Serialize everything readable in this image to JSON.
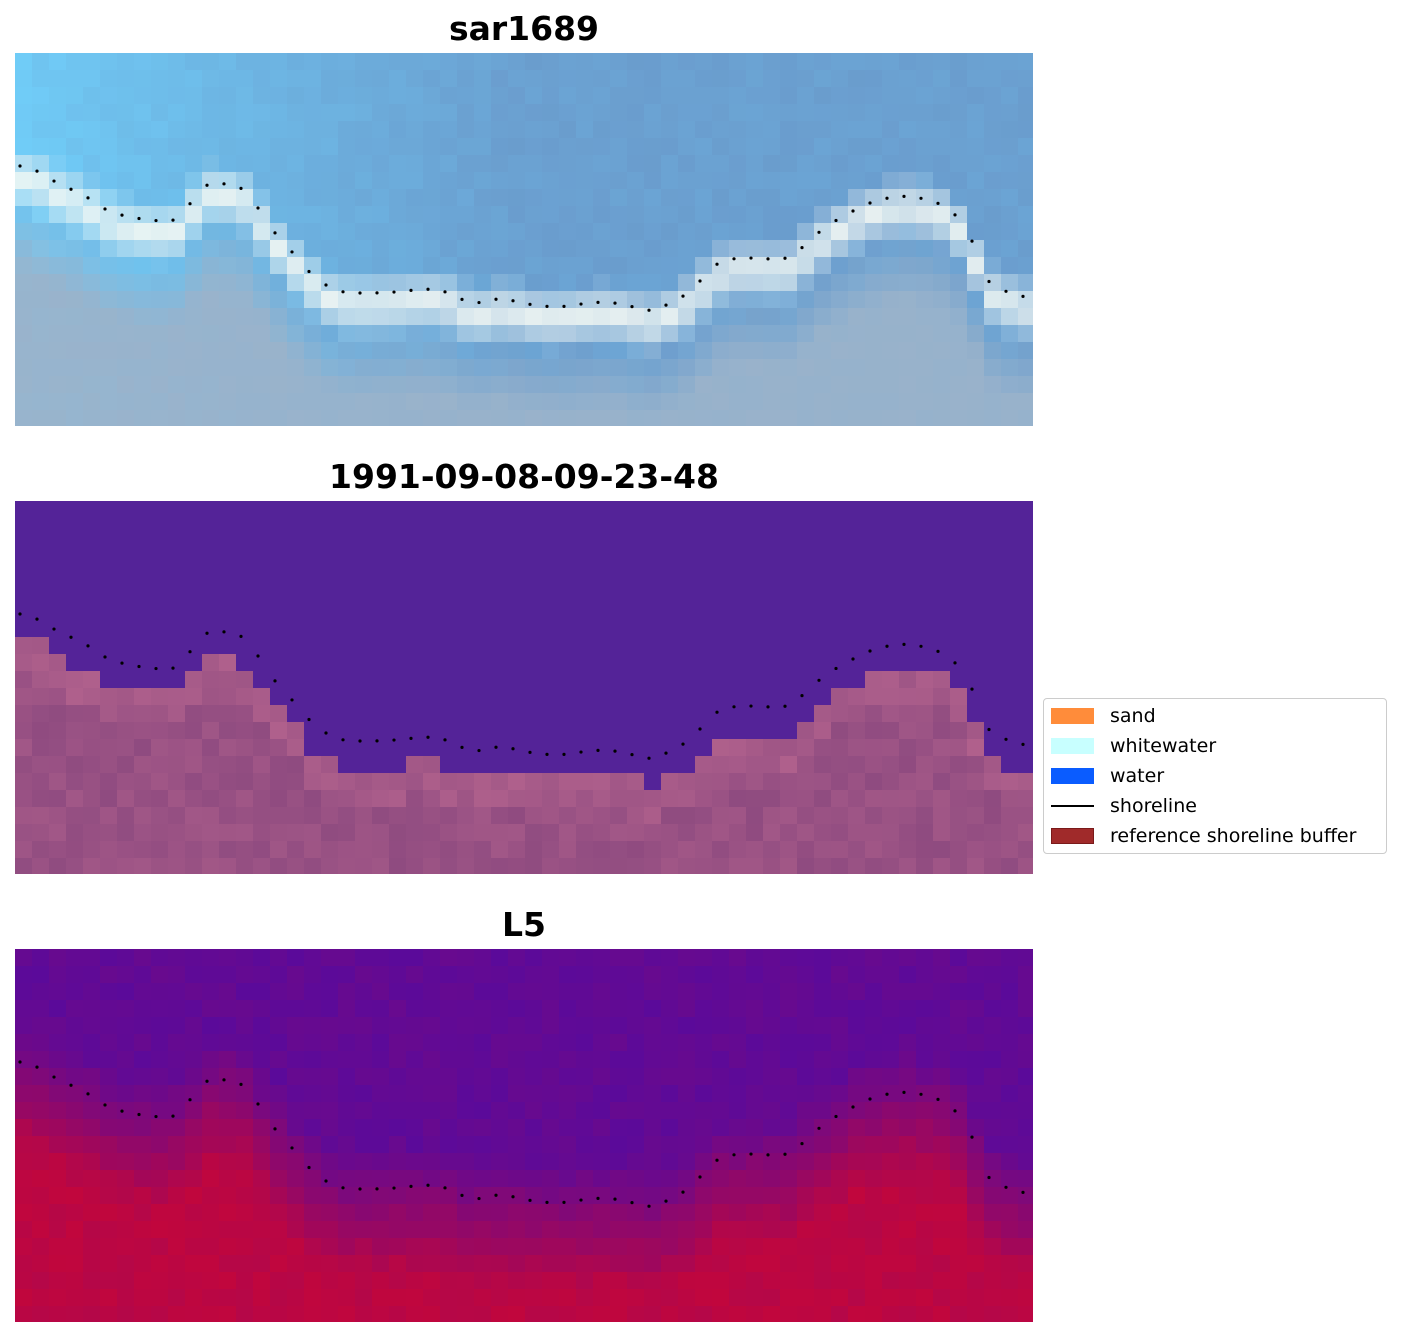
{
  "panels": [
    {
      "title": "sar1689",
      "image": "rgb-composite",
      "palette": "rgb"
    },
    {
      "title": "1991-09-08-09-23-48",
      "image": "classified-image",
      "palette": "class"
    },
    {
      "title": "L5",
      "image": "index-image",
      "palette": "index"
    }
  ],
  "legend": {
    "items": [
      {
        "label": "sand",
        "color": "#ff8c3a",
        "kind": "patch"
      },
      {
        "label": "whitewater",
        "color": "#c8ffff",
        "kind": "patch"
      },
      {
        "label": "water",
        "color": "#0a5cff",
        "kind": "patch"
      },
      {
        "label": "shoreline",
        "color": "#000000",
        "kind": "line"
      },
      {
        "label": "reference shoreline buffer",
        "color": "#a02a2a",
        "kind": "patch"
      }
    ]
  },
  "colors": {
    "class_water": "#542398",
    "class_land": "#8f4b80",
    "class_land_light": "#b8668f",
    "index_low": "#5b0a9a",
    "index_high": "#c4063a",
    "rgb_sky": "#70cdf8",
    "rgb_sea": "#6a9acb",
    "rgb_foam": "#f5f9f4",
    "rgb_sand": "#9ab3cb",
    "shoreline_dots": "#000000"
  }
}
